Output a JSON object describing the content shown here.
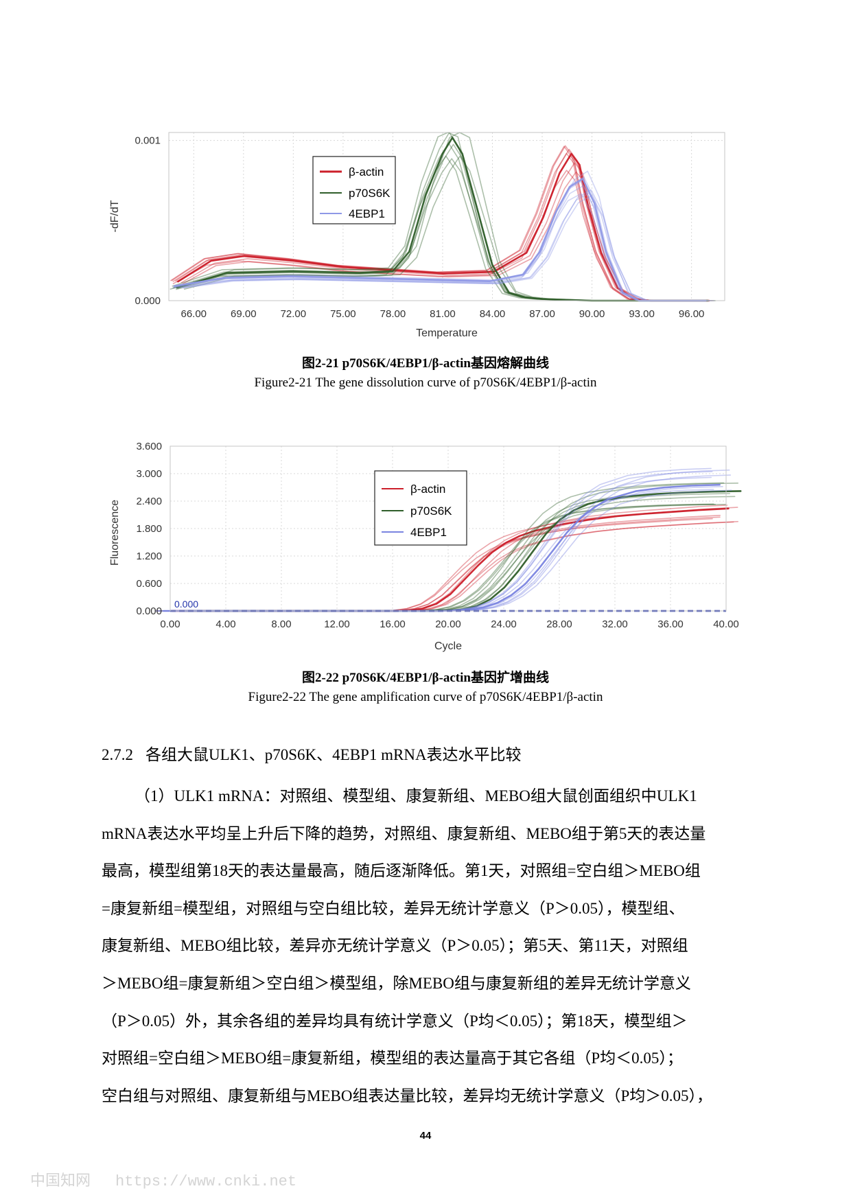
{
  "figure1": {
    "caption_cn": "图2-21 p70S6K/4EBP1/β-actin基因熔解曲线",
    "caption_en": "Figure2-21 The gene dissolution curve of p70S6K/4EBP1/β-actin"
  },
  "figure2": {
    "caption_cn": "图2-22 p70S6K/4EBP1/β-actin基因扩增曲线",
    "caption_en": "Figure2-22 The gene amplification curve of p70S6K/4EBP1/β-actin"
  },
  "section": {
    "number": "2.7.2",
    "title": "各组大鼠ULK1、p70S6K、4EBP1 mRNA表达水平比较"
  },
  "paragraph": {
    "lines": [
      "（1）ULK1 mRNA：对照组、模型组、康复新组、MEBO组大鼠创面组织中ULK1",
      "mRNA表达水平均呈上升后下降的趋势，对照组、康复新组、MEBO组于第5天的表达量",
      "最高，模型组第18天的表达量最高，随后逐渐降低。第1天，对照组=空白组＞MEBO组",
      "=康复新组=模型组，对照组与空白组比较，差异无统计学意义（P＞0.05），模型组、",
      "康复新组、MEBO组比较，差异亦无统计学意义（P＞0.05）；第5天、第11天，对照组",
      "＞MEBO组=康复新组＞空白组＞模型组，除MEBO组与康复新组的差异无统计学意义",
      "（P＞0.05）外，其余各组的差异均具有统计学意义（P均＜0.05）；第18天，模型组＞",
      "对照组=空白组＞MEBO组=康复新组，模型组的表达量高于其它各组（P均＜0.05）；",
      "空白组与对照组、康复新组与MEBO组表达量比较，差异均无统计学意义（P均＞0.05），"
    ]
  },
  "page_number": "44",
  "watermark": {
    "site": "中国知网",
    "url": "https://www.cnki.net"
  },
  "chart_data": [
    {
      "type": "line",
      "xlabel": "Temperature",
      "ylabel": "-dF/dT",
      "xlim": [
        64.5,
        98.0
      ],
      "ylim": [
        0.0,
        0.00105
      ],
      "xticks": [
        "66.00",
        "69.00",
        "72.00",
        "75.00",
        "78.00",
        "81.00",
        "84.00",
        "87.00",
        "90.00",
        "93.00",
        "96.00"
      ],
      "xtick_values": [
        66,
        69,
        72,
        75,
        78,
        81,
        84,
        87,
        90,
        93,
        96
      ],
      "yticks": [
        "0.000",
        "0.001"
      ],
      "ytick_values": [
        0.0,
        0.001
      ],
      "grid": true,
      "legend_position": "top-center",
      "colors": {
        "beta_actin": "#cc1f2a",
        "p70S6K": "#2f5e2a",
        "4EBP1": "#8f98e6"
      },
      "series": [
        {
          "name": "β-actin",
          "x": [
            65,
            67,
            69,
            72,
            75,
            78,
            81,
            84,
            86,
            87,
            88,
            88.7,
            89.2,
            89.7,
            90.5,
            91.5,
            92.5,
            93.5,
            97
          ],
          "y": [
            0.00012,
            0.00025,
            0.00028,
            0.00025,
            0.00021,
            0.00019,
            0.00017,
            0.00018,
            0.0003,
            0.00052,
            0.0008,
            0.00092,
            0.00085,
            0.0006,
            0.0003,
            8e-05,
            1e-05,
            0.0,
            0.0
          ]
        },
        {
          "name": "p70S6K",
          "x": [
            65,
            68,
            72,
            76,
            78,
            79,
            80,
            81,
            81.6,
            82.2,
            83,
            84,
            85,
            86,
            87,
            90,
            97
          ],
          "y": [
            8e-05,
            0.00017,
            0.00018,
            0.00017,
            0.00018,
            0.0003,
            0.00065,
            0.0009,
            0.001,
            0.0009,
            0.0006,
            0.00022,
            5e-05,
            2e-05,
            1e-05,
            0.0,
            0.0
          ]
        },
        {
          "name": "4EBP1",
          "x": [
            65,
            68,
            72,
            76,
            80,
            84,
            86,
            87,
            88,
            88.8,
            89.6,
            90.3,
            91,
            92,
            93,
            97
          ],
          "y": [
            9e-05,
            0.00014,
            0.00015,
            0.00014,
            0.00013,
            0.00012,
            0.00016,
            0.0003,
            0.00055,
            0.0007,
            0.00075,
            0.0006,
            0.0003,
            5e-05,
            0.0,
            0.0
          ]
        }
      ]
    },
    {
      "type": "line",
      "xlabel": "Cycle",
      "ylabel": "Fluorescence",
      "xlim": [
        0.0,
        40.0
      ],
      "ylim": [
        0.0,
        3.6
      ],
      "xticks": [
        "0.00",
        "4.00",
        "8.00",
        "12.00",
        "16.00",
        "20.00",
        "24.00",
        "28.00",
        "32.00",
        "36.00",
        "40.00"
      ],
      "xtick_values": [
        0,
        4,
        8,
        12,
        16,
        20,
        24,
        28,
        32,
        36,
        40
      ],
      "yticks": [
        "0.000",
        "0.600",
        "1.200",
        "1.800",
        "2.400",
        "3.000",
        "3.600"
      ],
      "ytick_values": [
        0,
        0.6,
        1.2,
        1.8,
        2.4,
        3.0,
        3.6
      ],
      "threshold_label": "0.000",
      "threshold_value": 0.0,
      "grid": true,
      "legend_position": "top-center",
      "colors": {
        "beta_actin": "#cc1f2a",
        "p70S6K": "#2f5e2a",
        "4EBP1": "#7a84e0",
        "threshold": "#2233aa"
      },
      "series": [
        {
          "name": "β-actin",
          "x": [
            0,
            16,
            17,
            18,
            19,
            20,
            21,
            22,
            23,
            24,
            25,
            26,
            28,
            30,
            32,
            34,
            36,
            38,
            40
          ],
          "y": [
            0,
            0,
            0.01,
            0.05,
            0.15,
            0.35,
            0.65,
            0.95,
            1.22,
            1.42,
            1.56,
            1.66,
            1.8,
            1.9,
            1.97,
            2.02,
            2.06,
            2.1,
            2.13
          ]
        },
        {
          "name": "p70S6K",
          "x": [
            0,
            18,
            19,
            20,
            21,
            22,
            23,
            24,
            25,
            26,
            27,
            28,
            29,
            30,
            32,
            34,
            36,
            38,
            40
          ],
          "y": [
            0,
            0,
            0.01,
            0.03,
            0.1,
            0.25,
            0.5,
            0.85,
            1.25,
            1.65,
            1.95,
            2.15,
            2.28,
            2.36,
            2.45,
            2.5,
            2.53,
            2.55,
            2.56
          ]
        },
        {
          "name": "4EBP1",
          "x": [
            0,
            20,
            21,
            22,
            23,
            24,
            25,
            26,
            27,
            28,
            29,
            30,
            31,
            32,
            34,
            36,
            38,
            40
          ],
          "y": [
            0,
            0,
            0.01,
            0.03,
            0.08,
            0.18,
            0.35,
            0.6,
            0.95,
            1.35,
            1.75,
            2.08,
            2.32,
            2.5,
            2.68,
            2.76,
            2.8,
            2.82
          ]
        }
      ]
    }
  ]
}
